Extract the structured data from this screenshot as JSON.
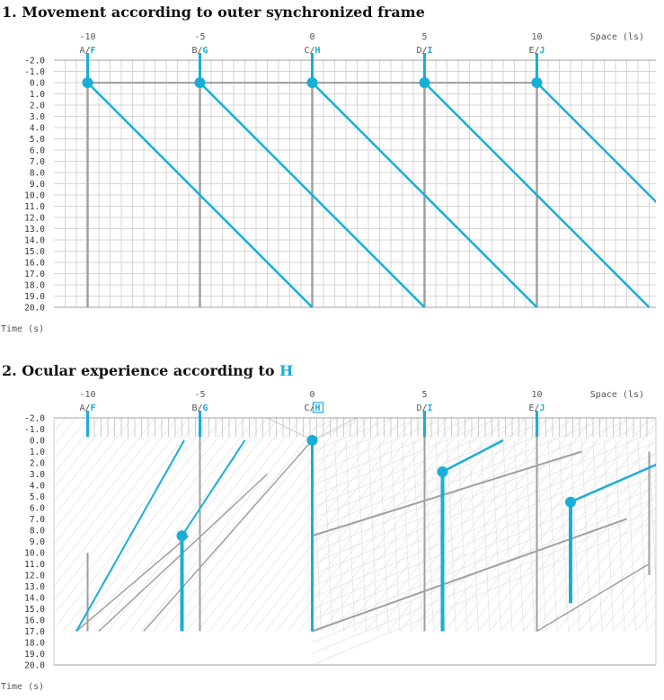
{
  "diagram1": {
    "title": "1. Movement according to outer synchronized frame",
    "space_label": "Space (ls)",
    "time_label": "Time (s)",
    "space_ticks": [
      "-10",
      "-5",
      "0",
      "5",
      "10"
    ],
    "observers": [
      {
        "stationary": "A",
        "moving": "F"
      },
      {
        "stationary": "B",
        "moving": "G"
      },
      {
        "stationary": "C",
        "moving": "H"
      },
      {
        "stationary": "D",
        "moving": "I"
      },
      {
        "stationary": "E",
        "moving": "J"
      }
    ],
    "time_ticks": [
      "-2.0",
      "-1.0",
      "0.0",
      "1.0",
      "2.0",
      "3.0",
      "4.0",
      "5.0",
      "6.0",
      "7.0",
      "8.0",
      "9.0",
      "10.0",
      "11.0",
      "12.0",
      "13.0",
      "14.0",
      "15.0",
      "16.0",
      "17.0",
      "18.0",
      "19.0",
      "20.0"
    ]
  },
  "diagram2": {
    "title_prefix": "2. Ocular experience according to ",
    "title_highlight": "H",
    "space_label": "Space (ls)",
    "time_label": "Time (s)",
    "space_ticks": [
      "-10",
      "-5",
      "0",
      "5",
      "10"
    ],
    "observers": [
      {
        "stationary": "A",
        "moving": "F"
      },
      {
        "stationary": "B",
        "moving": "G"
      },
      {
        "stationary": "C",
        "moving": "H",
        "boxed": true
      },
      {
        "stationary": "D",
        "moving": "I"
      },
      {
        "stationary": "E",
        "moving": "J"
      }
    ],
    "time_ticks": [
      "-2.0",
      "-1.0",
      "0.0",
      "1.0",
      "2.0",
      "3.0",
      "4.0",
      "5.0",
      "6.0",
      "7.0",
      "8.0",
      "9.0",
      "10.0",
      "11.0",
      "12.0",
      "13.0",
      "14.0",
      "15.0",
      "16.0",
      "17.0",
      "18.0",
      "19.0",
      "20.0"
    ]
  },
  "colors": {
    "accent": "#18aed8",
    "axis_gray": "#a0a0a0",
    "grid": "#d6d6d6",
    "text": "#333333",
    "heading": "#111111"
  }
}
